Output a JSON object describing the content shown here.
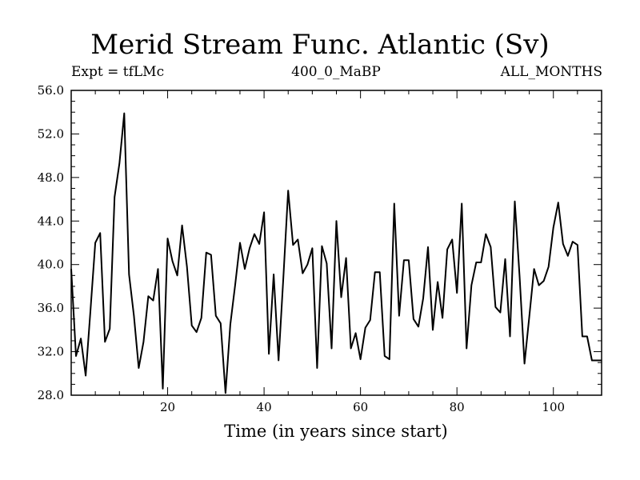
{
  "chart_data": {
    "type": "line",
    "title": "Merid Stream Func. Atlantic (Sv)",
    "subtitle_left": "Expt = tfLMc",
    "subtitle_center": "400_0_MaBP",
    "subtitle_right": "ALL_MONTHS",
    "xlabel": "Time (in years since start)",
    "ylabel": "",
    "xlim": [
      0,
      110
    ],
    "ylim": [
      28.0,
      56.0
    ],
    "xticks": [
      20,
      40,
      60,
      80,
      100
    ],
    "yticks": [
      28.0,
      32.0,
      36.0,
      40.0,
      44.0,
      48.0,
      52.0,
      56.0
    ],
    "ytick_labels": [
      "28.0",
      "32.0",
      "36.0",
      "40.0",
      "44.0",
      "48.0",
      "52.0",
      "56.0"
    ],
    "series": [
      {
        "name": "Merid Stream Func. Atlantic",
        "color": "#000000",
        "x": [
          0,
          1,
          2,
          3,
          4,
          5,
          6,
          7,
          8,
          9,
          10,
          11,
          12,
          13,
          14,
          15,
          16,
          17,
          18,
          19,
          20,
          21,
          22,
          23,
          24,
          25,
          26,
          27,
          28,
          29,
          30,
          31,
          32,
          33,
          34,
          35,
          36,
          37,
          38,
          39,
          40,
          41,
          42,
          43,
          44,
          45,
          46,
          47,
          48,
          49,
          50,
          51,
          52,
          53,
          54,
          55,
          56,
          57,
          58,
          59,
          60,
          61,
          62,
          63,
          64,
          65,
          66,
          67,
          68,
          69,
          70,
          71,
          72,
          73,
          74,
          75,
          76,
          77,
          78,
          79,
          80,
          81,
          82,
          83,
          84,
          85,
          86,
          87,
          88,
          89,
          90,
          91,
          92,
          93,
          94,
          95,
          96,
          97,
          98,
          99,
          100,
          101,
          102,
          103,
          104,
          105,
          106,
          107,
          108,
          109,
          110
        ],
        "values": [
          39.6,
          31.6,
          33.2,
          29.8,
          35.8,
          42.0,
          42.9,
          32.9,
          34.1,
          46.2,
          49.3,
          53.9,
          39.1,
          35.3,
          30.5,
          32.9,
          37.1,
          36.7,
          39.6,
          28.6,
          42.4,
          40.3,
          39.0,
          43.6,
          39.8,
          34.4,
          33.8,
          35.1,
          41.1,
          40.9,
          35.3,
          34.6,
          28.2,
          34.5,
          38.1,
          42.0,
          39.6,
          41.5,
          42.8,
          41.9,
          44.8,
          31.8,
          39.1,
          31.2,
          38.8,
          46.8,
          41.8,
          42.3,
          39.2,
          40.0,
          41.5,
          30.5,
          41.7,
          40.1,
          32.3,
          44.0,
          37.0,
          40.6,
          32.3,
          33.7,
          31.3,
          34.2,
          34.9,
          39.3,
          39.3,
          31.6,
          31.3,
          45.6,
          35.3,
          40.4,
          40.4,
          35.0,
          34.3,
          36.9,
          41.6,
          34.0,
          38.4,
          35.1,
          41.4,
          42.3,
          37.4,
          45.6,
          32.3,
          38.1,
          40.2,
          40.2,
          42.8,
          41.6,
          36.1,
          35.6,
          40.5,
          33.4,
          45.8,
          38.9,
          30.9,
          35.2,
          39.6,
          38.1,
          38.5,
          39.8,
          43.4,
          45.7,
          41.9,
          40.8,
          42.1,
          41.8,
          33.4,
          33.4,
          31.2,
          31.2,
          31.2
        ]
      }
    ]
  }
}
